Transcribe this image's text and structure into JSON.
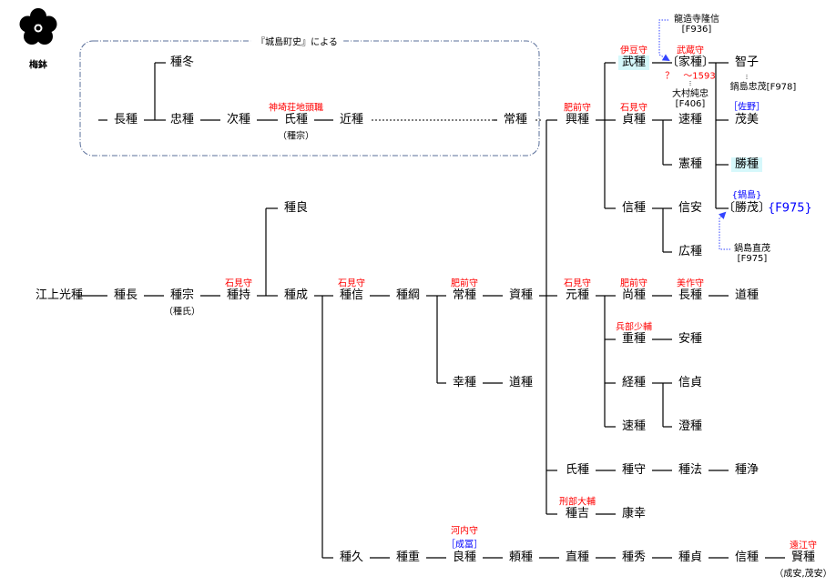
{
  "source_label": "『城島町史』による",
  "crest": {
    "label": "梅鉢",
    "icon": "umebachi-crest-icon"
  },
  "colors": {
    "title": "#ff0000",
    "note": "#0000ff",
    "highlight": "#d6f8fb",
    "box": "#5a6f9a"
  },
  "nodes": [
    {
      "id": "nagatane1",
      "name": "長種"
    },
    {
      "id": "tanefuyu",
      "name": "種冬"
    },
    {
      "id": "tadatane",
      "name": "忠種"
    },
    {
      "id": "tsugitane",
      "name": "次種"
    },
    {
      "id": "ujitane1",
      "name": "氏種",
      "title": "神埼荘地頭職",
      "alias": "（種宗）"
    },
    {
      "id": "chikatane",
      "name": "近種"
    },
    {
      "id": "tsunetane1",
      "name": "常種"
    },
    {
      "id": "oketane",
      "name": "興種",
      "title": "肥前守"
    },
    {
      "id": "taketane",
      "name": "武種",
      "title": "伊豆守",
      "highlight": true
    },
    {
      "id": "ietane",
      "name": "〔家種〕",
      "title": "武蔵守"
    },
    {
      "id": "tomoko",
      "name": "智子"
    },
    {
      "id": "sadatane",
      "name": "貞種",
      "title": "石見守"
    },
    {
      "id": "hayatane1",
      "name": "速種"
    },
    {
      "id": "shigemi",
      "name": "茂美",
      "note": "［佐野］"
    },
    {
      "id": "noritane",
      "name": "憲種"
    },
    {
      "id": "katsutane",
      "name": "勝種",
      "highlight": true
    },
    {
      "id": "nobutane1",
      "name": "信種"
    },
    {
      "id": "nobuyasu",
      "name": "信安"
    },
    {
      "id": "katsushige",
      "name": "〔勝茂〕",
      "note": "{鍋島}"
    },
    {
      "id": "hirotane",
      "name": "広種"
    },
    {
      "id": "taneyoshi1",
      "name": "種良"
    },
    {
      "id": "mitsutane",
      "name": "江上光種"
    },
    {
      "id": "tanenaga",
      "name": "種長"
    },
    {
      "id": "tanemune",
      "name": "種宗",
      "alias": "（種氏）"
    },
    {
      "id": "tanemochi",
      "name": "種持",
      "title": "石見守"
    },
    {
      "id": "tanenari",
      "name": "種成"
    },
    {
      "id": "tanenobu",
      "name": "種信",
      "title": "石見守"
    },
    {
      "id": "tanetsuna",
      "name": "種綱"
    },
    {
      "id": "tsunetane2",
      "name": "常種",
      "title": "肥前守"
    },
    {
      "id": "suketane",
      "name": "資種"
    },
    {
      "id": "mototane",
      "name": "元種",
      "title": "石見守"
    },
    {
      "id": "naotane1",
      "name": "尚種",
      "title": "肥前守"
    },
    {
      "id": "nagatane2",
      "name": "長種",
      "title": "美作守"
    },
    {
      "id": "michitane1",
      "name": "道種"
    },
    {
      "id": "yukitane",
      "name": "幸種"
    },
    {
      "id": "michitane2",
      "name": "道種"
    },
    {
      "id": "shigetane1",
      "name": "重種",
      "title": "兵部少輔"
    },
    {
      "id": "yasutane",
      "name": "安種"
    },
    {
      "id": "tsunetane3",
      "name": "経種"
    },
    {
      "id": "nobusada",
      "name": "信貞"
    },
    {
      "id": "hayatane2",
      "name": "速種"
    },
    {
      "id": "kiyotane",
      "name": "澄種"
    },
    {
      "id": "ujitane2",
      "name": "氏種"
    },
    {
      "id": "tanemori",
      "name": "種守"
    },
    {
      "id": "tanenori",
      "name": "種法"
    },
    {
      "id": "tanejou",
      "name": "種浄"
    },
    {
      "id": "taneyoshi2",
      "name": "種吉",
      "title": "刑部大輔"
    },
    {
      "id": "yasuyuki",
      "name": "康幸"
    },
    {
      "id": "tanehisa",
      "name": "種久"
    },
    {
      "id": "taneshige",
      "name": "種重"
    },
    {
      "id": "yoshitane",
      "name": "良種",
      "title": "河内守",
      "note": "［成冨］"
    },
    {
      "id": "yoritane",
      "name": "頼種"
    },
    {
      "id": "naotane2",
      "name": "直種"
    },
    {
      "id": "tanehide",
      "name": "種秀"
    },
    {
      "id": "tanesada",
      "name": "種貞"
    },
    {
      "id": "nobutane2",
      "name": "信種"
    },
    {
      "id": "katatane",
      "name": "賢種",
      "title": "遠江守",
      "alias": "（成安,茂安）"
    }
  ],
  "annotations": {
    "ryuzoji": {
      "name": "龍造寺隆信",
      "ref": "[F936]"
    },
    "ietane_dates": "？　～1593",
    "omura": {
      "name": "大村純忠",
      "ref": "[F406]"
    },
    "nabeshima_tadashige": "鍋島忠茂[F978]",
    "katsushige_ref": "{F975}",
    "nabeshima_naoshige": {
      "name": "鍋島直茂",
      "ref": "[F975]"
    }
  }
}
